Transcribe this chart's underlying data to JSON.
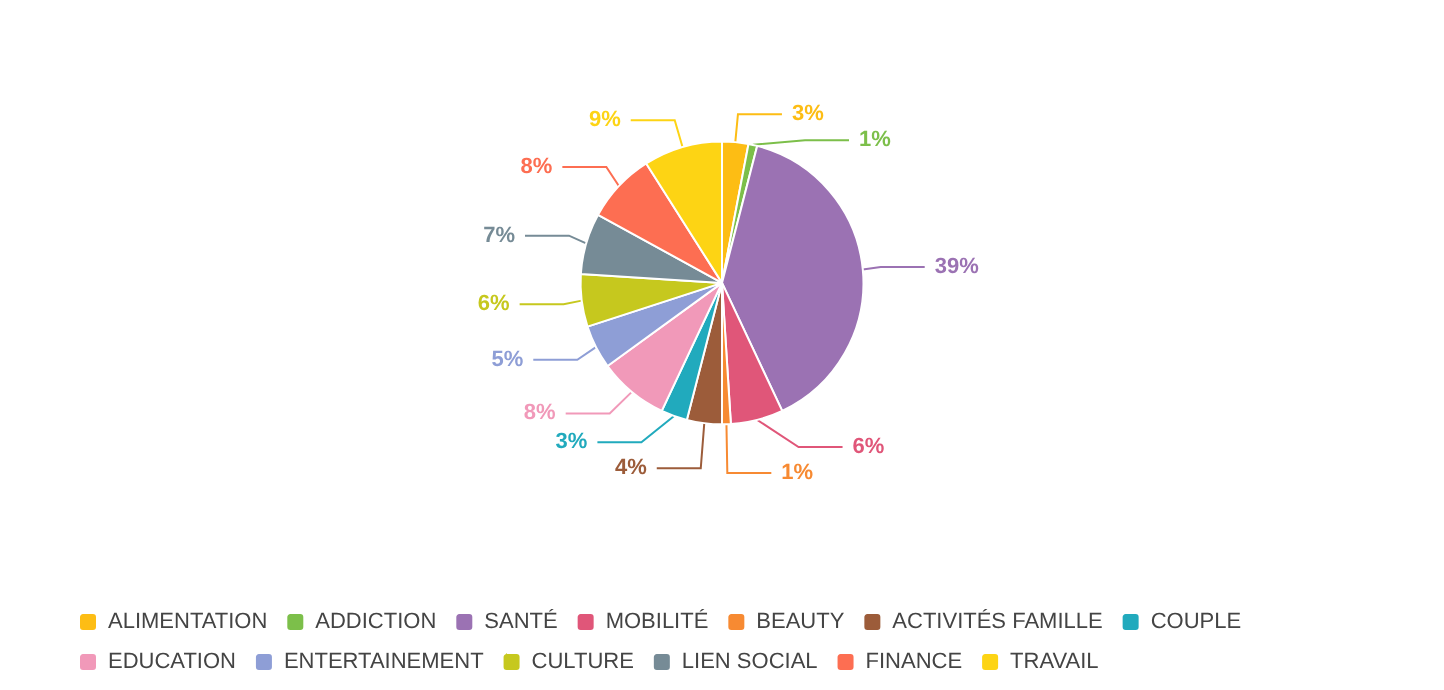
{
  "chart_data": {
    "type": "pie",
    "categories": [
      "ALIMENTATION",
      "ADDICTION",
      "SANTÉ",
      "MOBILITÉ",
      "BEAUTY",
      "ACTIVITÉS FAMILLE",
      "COUPLE",
      "EDUCATION",
      "ENTERTAINEMENT",
      "CULTURE",
      "LIEN SOCIAL",
      "FINANCE",
      "TRAVAIL"
    ],
    "values": [
      3,
      1,
      39,
      6,
      1,
      4,
      3,
      8,
      5,
      6,
      7,
      8,
      9
    ],
    "value_labels": [
      "3%",
      "1%",
      "39%",
      "6%",
      "1%",
      "4%",
      "3%",
      "8%",
      "5%",
      "6%",
      "7%",
      "8%",
      "9%"
    ],
    "colors": [
      "#fdbd14",
      "#7cbf4a",
      "#9b72b3",
      "#e05679",
      "#f78a32",
      "#9c5c3a",
      "#21aabd",
      "#f199b9",
      "#8e9ed6",
      "#c6c81e",
      "#768b96",
      "#fd6e52",
      "#fdd414"
    ],
    "legend": "bottom"
  }
}
